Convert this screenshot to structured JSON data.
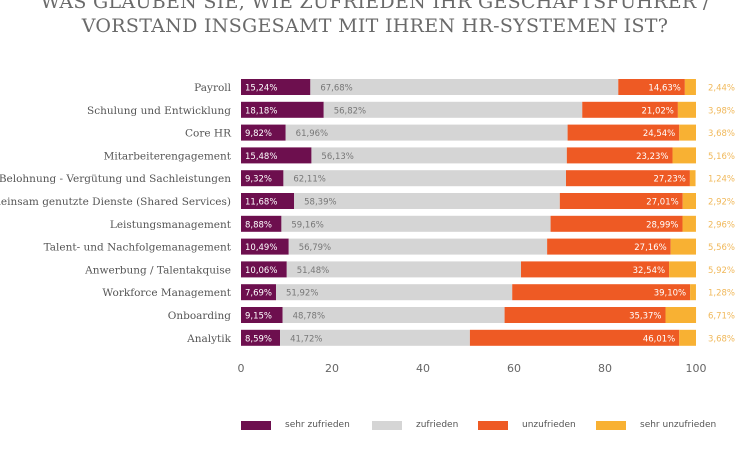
{
  "title_lines": [
    "WAS GLAUBEN SIE, WIE ZUFRIEDEN IHR GESCHÄFTSFÜHRER /",
    "VORSTAND INSGESAMT MIT IHREN HR-SYSTEMEN IST?"
  ],
  "chart_data": {
    "type": "bar",
    "orientation": "horizontal",
    "stacked": true,
    "title": "WAS GLAUBEN SIE, WIE ZUFRIEDEN IHR GESCHÄFTSFÜHRER / VORSTAND INSGESAMT MIT IHREN HR-SYSTEMEN IST?",
    "categories": [
      "Payroll",
      "Schulung und Entwicklung",
      "Core HR",
      "Mitarbeiterengagement",
      "Belohnung - Vergütung und Sachleistungen",
      "Gemeinsam genutzte Dienste (Shared Services)",
      "Leistungsmanagement",
      "Talent- und Nachfolgemanagement",
      "Anwerbung / Talentakquise",
      "Workforce Management",
      "Onboarding",
      "Analytik"
    ],
    "series": [
      {
        "name": "sehr zufrieden",
        "color": "#6d0f4e",
        "values": [
          15.24,
          18.18,
          9.82,
          15.48,
          9.32,
          11.68,
          8.88,
          10.49,
          10.06,
          7.69,
          9.15,
          8.59
        ],
        "labels": [
          "15,24%",
          "18,18%",
          "9,82%",
          "15,48%",
          "9,32%",
          "11,68%",
          "8,88%",
          "10,49%",
          "10,06%",
          "7,69%",
          "9,15%",
          "8,59%"
        ]
      },
      {
        "name": "zufrieden",
        "color": "#d5d5d5",
        "values": [
          67.68,
          56.82,
          61.96,
          56.13,
          62.11,
          58.39,
          59.16,
          56.79,
          51.48,
          51.92,
          48.78,
          41.72
        ],
        "labels": [
          "67,68%",
          "56,82%",
          "61,96%",
          "56,13%",
          "62,11%",
          "58,39%",
          "59,16%",
          "56,79%",
          "51,48%",
          "51,92%",
          "48,78%",
          "41,72%"
        ]
      },
      {
        "name": "unzufrieden",
        "color": "#ee5a24",
        "values": [
          14.63,
          21.02,
          24.54,
          23.23,
          27.23,
          27.01,
          28.99,
          27.16,
          32.54,
          39.1,
          35.37,
          46.01
        ],
        "labels": [
          "14,63%",
          "21,02%",
          "24,54%",
          "23,23%",
          "27,23%",
          "27,01%",
          "28,99%",
          "27,16%",
          "32,54%",
          "39,10%",
          "35,37%",
          "46,01%"
        ]
      },
      {
        "name": "sehr unzufrieden",
        "color": "#f8b133",
        "values": [
          2.44,
          3.98,
          3.68,
          5.16,
          1.24,
          2.92,
          2.96,
          5.56,
          5.92,
          1.28,
          6.71,
          3.68
        ],
        "labels": [
          "2,44%",
          "3,98%",
          "3,68%",
          "5,16%",
          "1,24%",
          "2,92%",
          "2,96%",
          "5,56%",
          "5,92%",
          "1,28%",
          "6,71%",
          "3,68%"
        ]
      }
    ],
    "xlim": [
      0,
      100
    ],
    "xticks": [
      "0",
      "20",
      "40",
      "60",
      "80",
      "100"
    ],
    "grid": false,
    "legend_placement": "bottom"
  }
}
